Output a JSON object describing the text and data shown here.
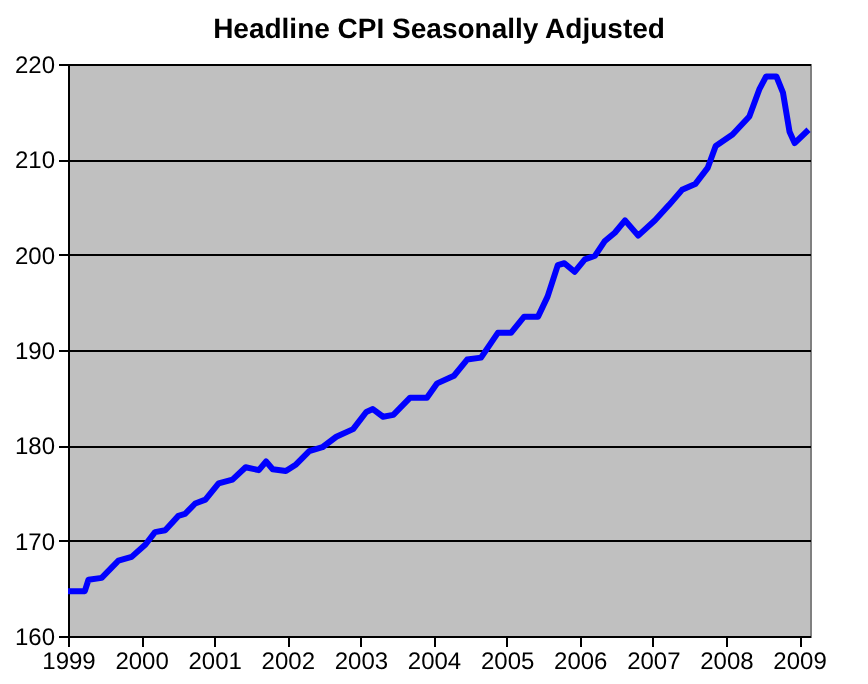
{
  "chart_data": {
    "type": "line",
    "title": "Headline CPI Seasonally Adjusted",
    "x": [
      1999.0,
      1999.23,
      1999.28,
      1999.46,
      1999.69,
      1999.87,
      2000.06,
      2000.19,
      2000.33,
      2000.51,
      2000.6,
      2000.74,
      2000.88,
      2001.06,
      2001.25,
      2001.43,
      2001.61,
      2001.71,
      2001.8,
      2001.98,
      2002.12,
      2002.3,
      2002.48,
      2002.67,
      2002.9,
      2003.08,
      2003.17,
      2003.31,
      2003.45,
      2003.68,
      2003.91,
      2004.05,
      2004.28,
      2004.46,
      2004.65,
      2004.88,
      2005.06,
      2005.24,
      2005.43,
      2005.56,
      2005.7,
      2005.79,
      2005.93,
      2006.07,
      2006.21,
      2006.34,
      2006.48,
      2006.62,
      2006.8,
      2007.03,
      2007.22,
      2007.4,
      2007.58,
      2007.75,
      2007.86,
      2008.09,
      2008.32,
      2008.46,
      2008.55,
      2008.69,
      2008.78,
      2008.87,
      2008.94,
      2009.13
    ],
    "series": [
      {
        "color": "#0000ff",
        "values": [
          164.7,
          164.7,
          165.9,
          166.1,
          167.9,
          168.3,
          169.6,
          170.9,
          171.1,
          172.6,
          172.8,
          173.9,
          174.3,
          176.0,
          176.4,
          177.7,
          177.4,
          178.3,
          177.5,
          177.3,
          178.0,
          179.4,
          179.8,
          180.9,
          181.7,
          183.5,
          183.8,
          183.0,
          183.2,
          185.0,
          185.0,
          186.5,
          187.3,
          189.0,
          189.2,
          191.8,
          191.8,
          193.5,
          193.5,
          195.6,
          198.9,
          199.1,
          198.2,
          199.5,
          199.9,
          201.4,
          202.3,
          203.6,
          202.0,
          203.6,
          205.2,
          206.8,
          207.4,
          209.1,
          211.4,
          212.6,
          214.5,
          217.4,
          218.7,
          218.7,
          217.0,
          212.9,
          211.7,
          213.1
        ]
      }
    ],
    "xlim": [
      1999,
      2009.15
    ],
    "xticks": [
      1999,
      2000,
      2001,
      2002,
      2003,
      2004,
      2005,
      2006,
      2007,
      2008,
      2009
    ],
    "ylim": [
      160,
      220
    ],
    "yticks": [
      160,
      170,
      180,
      190,
      200,
      210,
      220
    ],
    "grid": "y",
    "legend": false,
    "marker": "none",
    "line_style": "solid"
  }
}
